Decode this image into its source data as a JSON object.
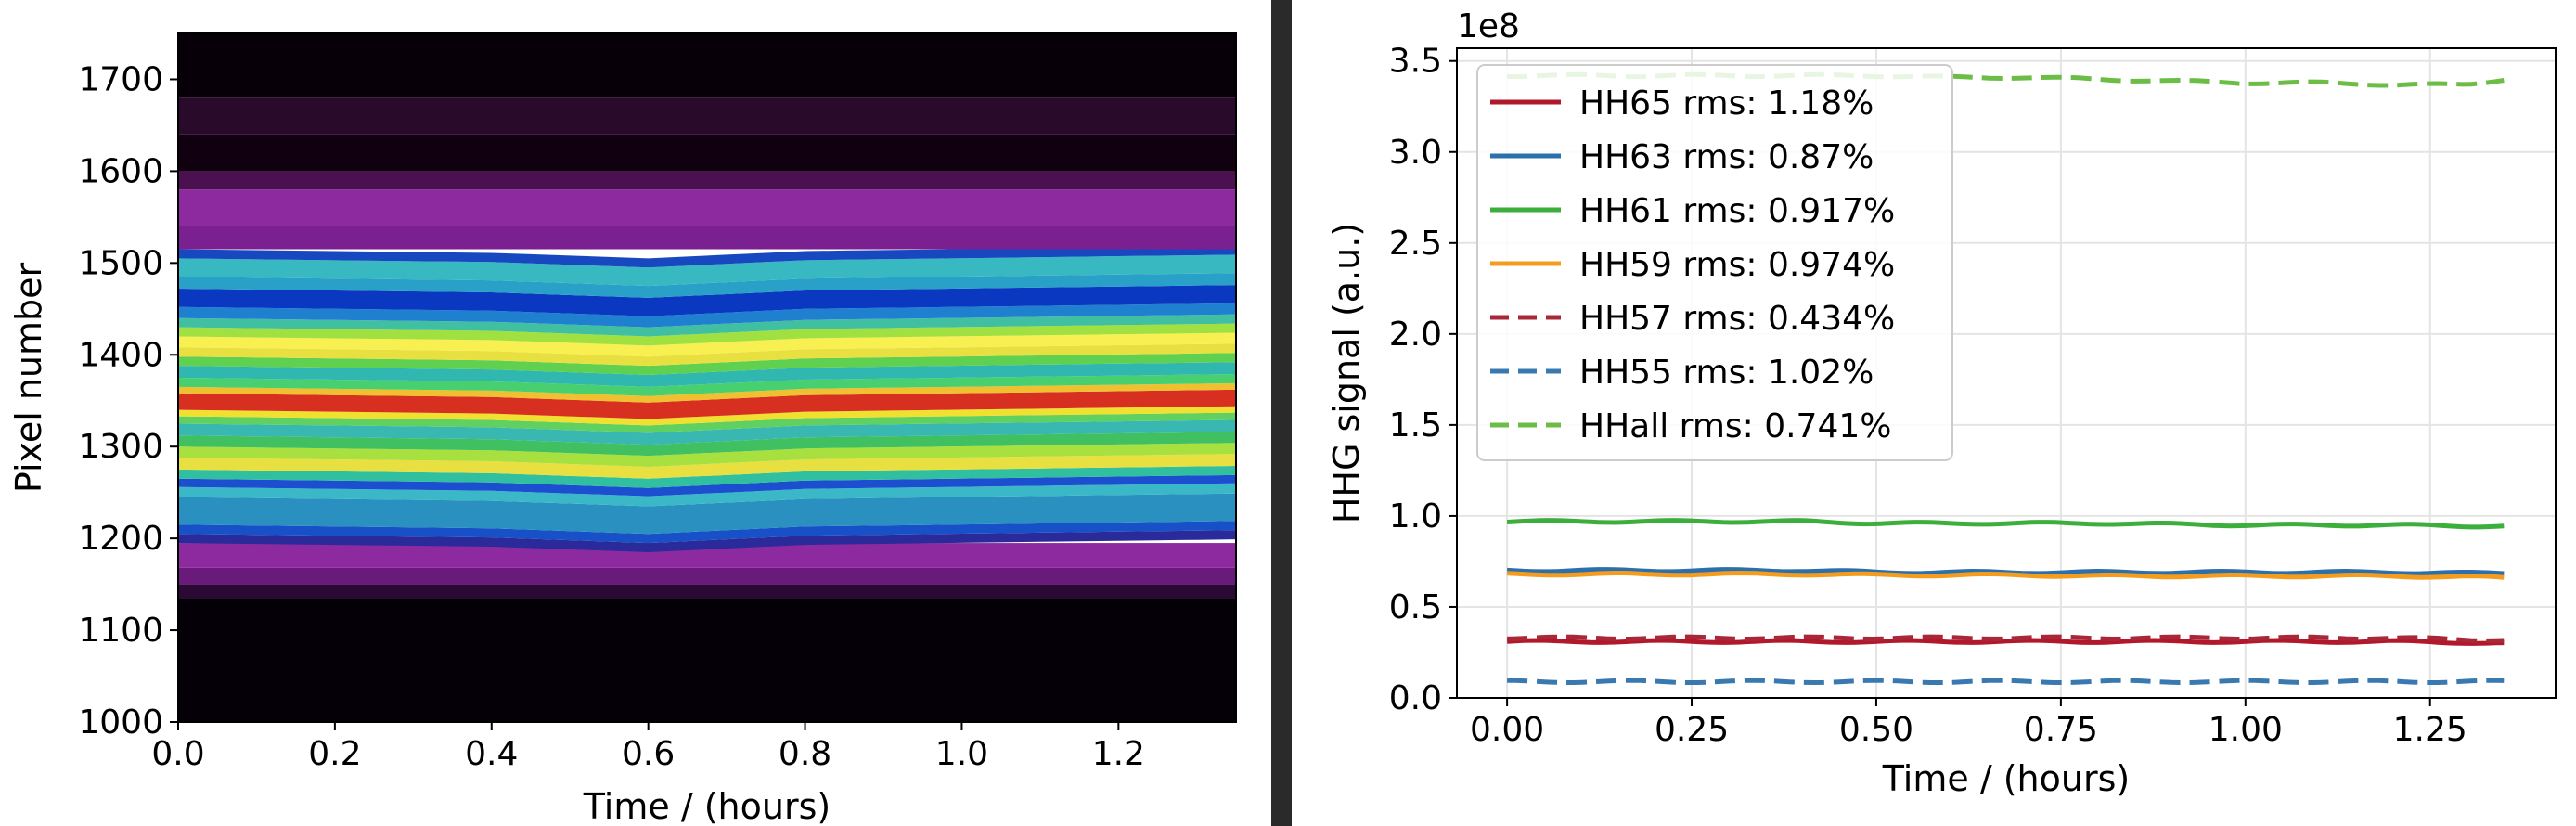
{
  "chart_data": [
    {
      "type": "heatmap",
      "xlabel": "Time / (hours)",
      "ylabel": "Pixel number",
      "xlim": [
        0.0,
        1.35
      ],
      "ylim": [
        1000,
        1750
      ],
      "xticks": [
        "0.0",
        "0.2",
        "0.4",
        "0.6",
        "0.8",
        "1.0",
        "1.2"
      ],
      "xtick_values": [
        0.0,
        0.2,
        0.4,
        0.6,
        0.8,
        1.0,
        1.2
      ],
      "yticks": [
        "1000",
        "1100",
        "1200",
        "1300",
        "1400",
        "1500",
        "1600",
        "1700"
      ],
      "ytick_values": [
        1000,
        1100,
        1200,
        1300,
        1400,
        1500,
        1600,
        1700
      ],
      "colormap": "gist_ncar-like (black → purple → blue → cyan → green → yellow → red → white)",
      "bands": [
        {
          "from": 1000,
          "to": 1135,
          "color": "#050008"
        },
        {
          "from": 1135,
          "to": 1150,
          "color": "#2a0a35"
        },
        {
          "from": 1150,
          "to": 1168,
          "color": "#6a1a7a"
        },
        {
          "from": 1168,
          "to": 1195,
          "color": "#8e2aa0"
        },
        {
          "from": 1195,
          "to": 1205,
          "color": "#2a2a9a"
        },
        {
          "from": 1205,
          "to": 1215,
          "color": "#1850c8"
        },
        {
          "from": 1215,
          "to": 1245,
          "color": "#2a90c0"
        },
        {
          "from": 1245,
          "to": 1256,
          "color": "#3ab8c8"
        },
        {
          "from": 1256,
          "to": 1265,
          "color": "#1c4fd0"
        },
        {
          "from": 1265,
          "to": 1275,
          "color": "#30c0a0"
        },
        {
          "from": 1275,
          "to": 1288,
          "color": "#e8e040"
        },
        {
          "from": 1288,
          "to": 1300,
          "color": "#a8e040"
        },
        {
          "from": 1300,
          "to": 1312,
          "color": "#40c060"
        },
        {
          "from": 1312,
          "to": 1325,
          "color": "#38b8b0"
        },
        {
          "from": 1325,
          "to": 1333,
          "color": "#60d060"
        },
        {
          "from": 1333,
          "to": 1340,
          "color": "#f0e030"
        },
        {
          "from": 1340,
          "to": 1358,
          "color": "#d83020"
        },
        {
          "from": 1358,
          "to": 1365,
          "color": "#f0c030"
        },
        {
          "from": 1365,
          "to": 1375,
          "color": "#48d070"
        },
        {
          "from": 1375,
          "to": 1388,
          "color": "#30b8b0"
        },
        {
          "from": 1388,
          "to": 1398,
          "color": "#60d050"
        },
        {
          "from": 1398,
          "to": 1408,
          "color": "#e8e040"
        },
        {
          "from": 1408,
          "to": 1420,
          "color": "#f8f050"
        },
        {
          "from": 1420,
          "to": 1430,
          "color": "#a0e040"
        },
        {
          "from": 1430,
          "to": 1440,
          "color": "#40c0a0"
        },
        {
          "from": 1440,
          "to": 1452,
          "color": "#2080d0"
        },
        {
          "from": 1452,
          "to": 1472,
          "color": "#0a38c0"
        },
        {
          "from": 1472,
          "to": 1485,
          "color": "#28a0c8"
        },
        {
          "from": 1485,
          "to": 1505,
          "color": "#38b8c0"
        },
        {
          "from": 1505,
          "to": 1515,
          "color": "#1848c0"
        },
        {
          "from": 1515,
          "to": 1540,
          "color": "#7a2090"
        },
        {
          "from": 1540,
          "to": 1580,
          "color": "#8e2aa0"
        },
        {
          "from": 1580,
          "to": 1600,
          "color": "#4a104f"
        },
        {
          "from": 1600,
          "to": 1640,
          "color": "#100010"
        },
        {
          "from": 1640,
          "to": 1680,
          "color": "#2a0a2a"
        },
        {
          "from": 1680,
          "to": 1750,
          "color": "#080008"
        }
      ],
      "center_band_drift": {
        "times": [
          0.0,
          0.4,
          0.6,
          0.8,
          1.35
        ],
        "offsets": [
          0,
          -4,
          -10,
          -2,
          4
        ]
      }
    },
    {
      "type": "line",
      "xlabel": "Time / (hours)",
      "ylabel": "HHG signal (a.u.)",
      "offset_text": "1e8",
      "xlim": [
        -0.068,
        1.42
      ],
      "ylim": [
        0.0,
        3.57
      ],
      "xticks": [
        "0.00",
        "0.25",
        "0.50",
        "0.75",
        "1.00",
        "1.25"
      ],
      "xtick_values": [
        0.0,
        0.25,
        0.5,
        0.75,
        1.0,
        1.25
      ],
      "yticks": [
        "0.0",
        "0.5",
        "1.0",
        "1.5",
        "2.0",
        "2.5",
        "3.0",
        "3.5"
      ],
      "ytick_values": [
        0.0,
        0.5,
        1.0,
        1.5,
        2.0,
        2.5,
        3.0,
        3.5
      ],
      "grid": true,
      "legend_placement": "upper-left",
      "x": [
        0.0,
        0.1,
        0.2,
        0.3,
        0.4,
        0.5,
        0.6,
        0.7,
        0.8,
        0.9,
        1.0,
        1.1,
        1.2,
        1.3,
        1.35
      ],
      "series": [
        {
          "name": "HH65 rms: 1.18%",
          "color": "#b2182b",
          "dash": "solid",
          "values": [
            0.31,
            0.31,
            0.31,
            0.31,
            0.31,
            0.31,
            0.31,
            0.31,
            0.31,
            0.31,
            0.31,
            0.31,
            0.31,
            0.305,
            0.3
          ]
        },
        {
          "name": "HH63 rms: 0.87%",
          "color": "#2c6fad",
          "dash": "solid",
          "values": [
            0.7,
            0.7,
            0.7,
            0.7,
            0.7,
            0.69,
            0.69,
            0.69,
            0.69,
            0.69,
            0.69,
            0.69,
            0.69,
            0.685,
            0.685
          ]
        },
        {
          "name": "HH61 rms: 0.917%",
          "color": "#3cae3c",
          "dash": "solid",
          "values": [
            0.97,
            0.97,
            0.97,
            0.97,
            0.97,
            0.96,
            0.96,
            0.96,
            0.96,
            0.955,
            0.95,
            0.95,
            0.95,
            0.945,
            0.945
          ]
        },
        {
          "name": "HH59 rms: 0.974%",
          "color": "#f39c1e",
          "dash": "solid",
          "values": [
            0.68,
            0.68,
            0.68,
            0.68,
            0.68,
            0.675,
            0.675,
            0.675,
            0.67,
            0.67,
            0.67,
            0.67,
            0.67,
            0.665,
            0.66
          ]
        },
        {
          "name": "HH57 rms: 0.434%",
          "color": "#a8283a",
          "dash": "dashed",
          "values": [
            0.33,
            0.33,
            0.33,
            0.33,
            0.33,
            0.33,
            0.33,
            0.33,
            0.33,
            0.33,
            0.33,
            0.33,
            0.33,
            0.32,
            0.32
          ]
        },
        {
          "name": "HH55 rms: 1.02%",
          "color": "#3a78b0",
          "dash": "dashed",
          "values": [
            0.09,
            0.09,
            0.09,
            0.09,
            0.09,
            0.09,
            0.09,
            0.09,
            0.09,
            0.09,
            0.09,
            0.09,
            0.09,
            0.09,
            0.09
          ]
        },
        {
          "name": "HHall rms: 0.741%",
          "color": "#6cbd45",
          "dash": "dashed",
          "values": [
            3.42,
            3.42,
            3.42,
            3.42,
            3.42,
            3.42,
            3.41,
            3.41,
            3.4,
            3.39,
            3.38,
            3.38,
            3.37,
            3.37,
            3.4
          ]
        }
      ]
    }
  ]
}
